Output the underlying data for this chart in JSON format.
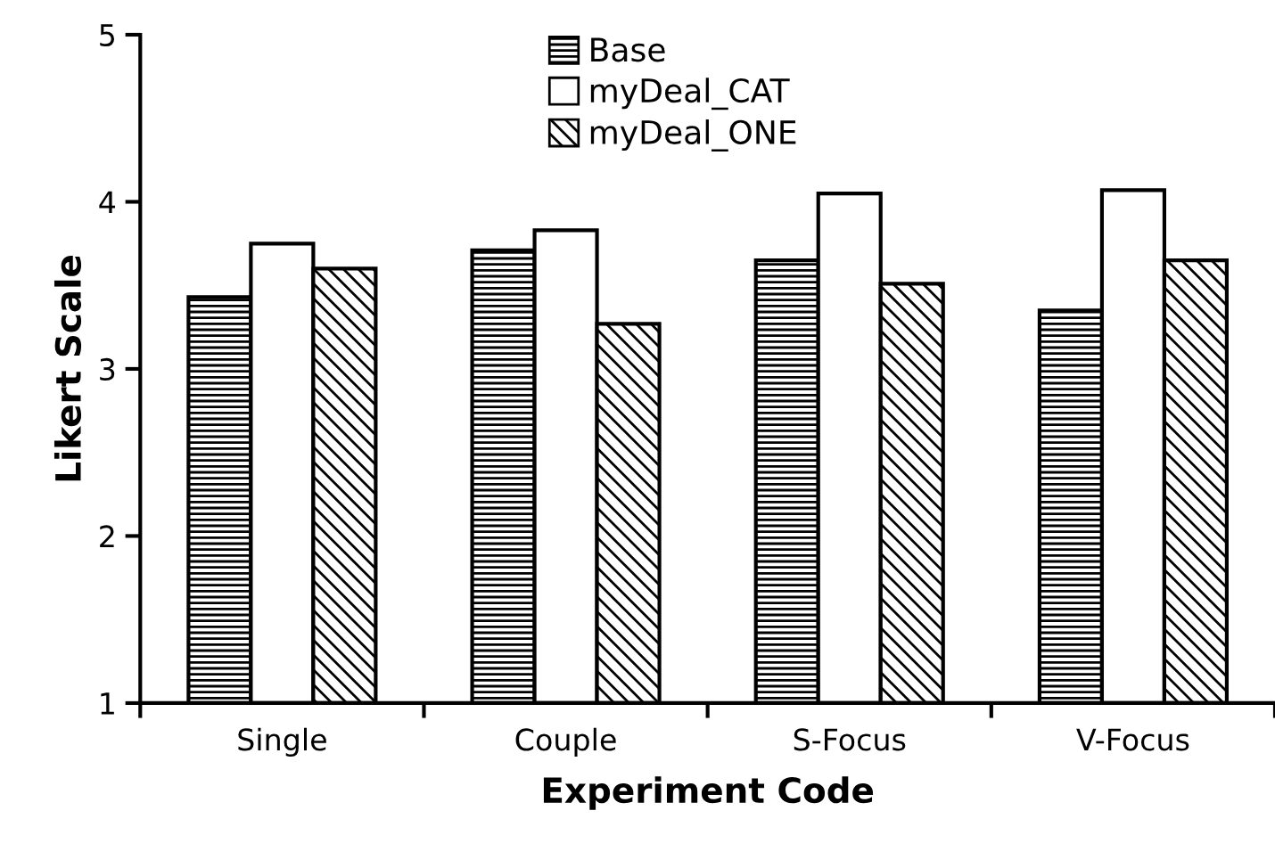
{
  "chart_data": {
    "type": "bar",
    "xlabel": "Experiment Code",
    "ylabel": "Likert Scale",
    "categories": [
      "Single",
      "Couple",
      "S-Focus",
      "V-Focus"
    ],
    "series": [
      {
        "name": "Base",
        "color": "#000000",
        "values": [
          3.43,
          3.71,
          3.65,
          3.35
        ]
      },
      {
        "name": "myDeal_CAT",
        "color": "#ffffff",
        "values": [
          3.75,
          3.83,
          4.05,
          4.07
        ]
      },
      {
        "name": "myDeal_ONE",
        "color": "#000000",
        "values": [
          3.6,
          3.27,
          3.51,
          3.65
        ]
      }
    ],
    "ylim": [
      1,
      5
    ],
    "yticks": [
      1,
      2,
      3,
      4,
      5
    ],
    "grid": false,
    "legend": "top"
  }
}
